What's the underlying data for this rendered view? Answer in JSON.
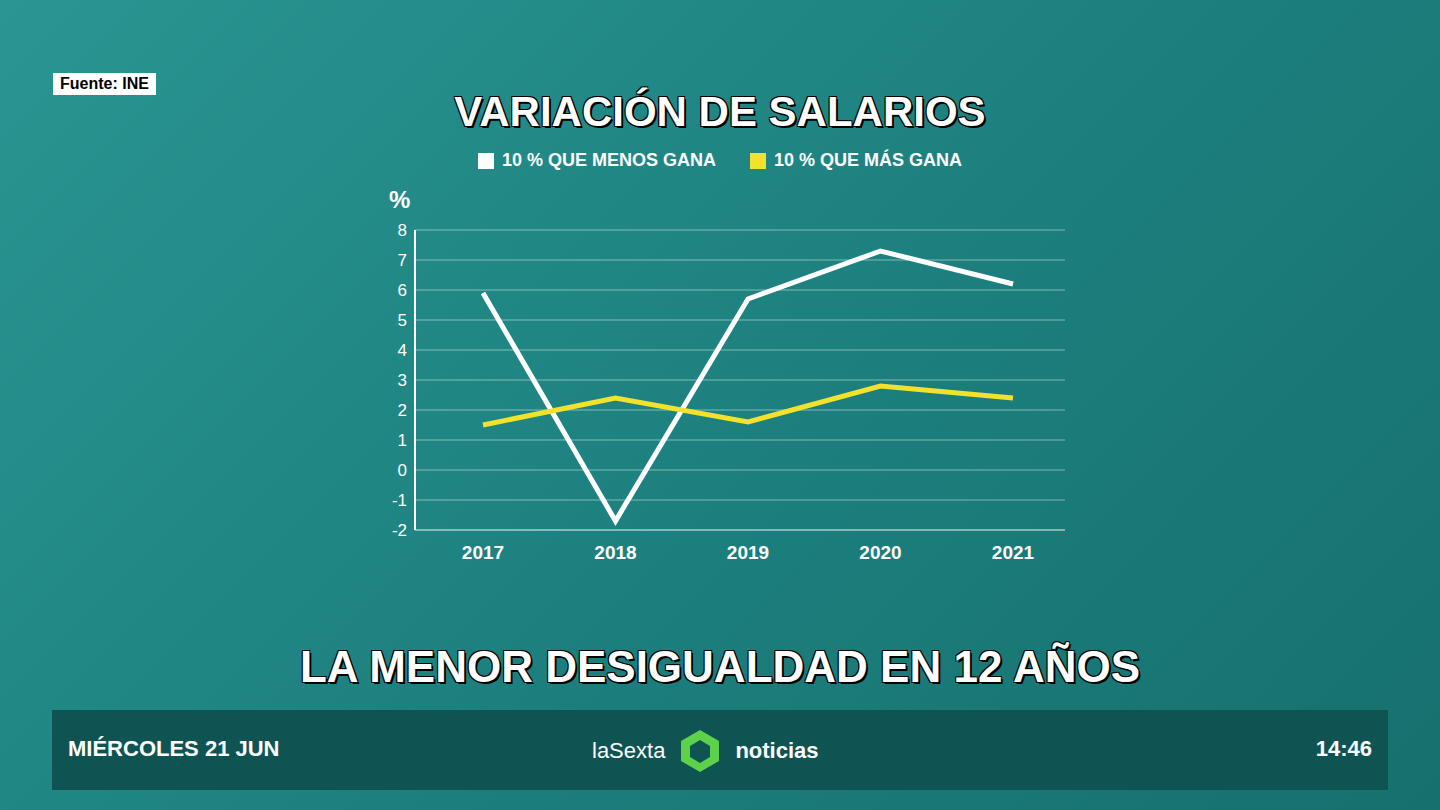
{
  "source": "Fuente: INE",
  "chart_data": {
    "type": "line",
    "title": "VARIACIÓN DE SALARIOS",
    "ylabel": "%",
    "categories": [
      "2017",
      "2018",
      "2019",
      "2020",
      "2021"
    ],
    "series": [
      {
        "name": "10 % QUE MENOS GANA",
        "color": "#ffffff",
        "values": [
          5.9,
          -1.7,
          5.7,
          7.3,
          6.2
        ]
      },
      {
        "name": "10 % QUE MÁS GANA",
        "color": "#f2e22c",
        "values": [
          1.5,
          2.4,
          1.6,
          2.8,
          2.4
        ]
      }
    ],
    "ylim": [
      -2,
      8
    ],
    "yticks": [
      -2,
      -1,
      0,
      1,
      2,
      3,
      4,
      5,
      6,
      7,
      8
    ],
    "grid": true,
    "legend": "top"
  },
  "headline": "LA MENOR DESIGUALDAD EN 12 AÑOS",
  "footer": {
    "date": "MIÉRCOLES 21 JUN",
    "channel": "laSexta",
    "program": "noticias",
    "time": "14:46"
  }
}
